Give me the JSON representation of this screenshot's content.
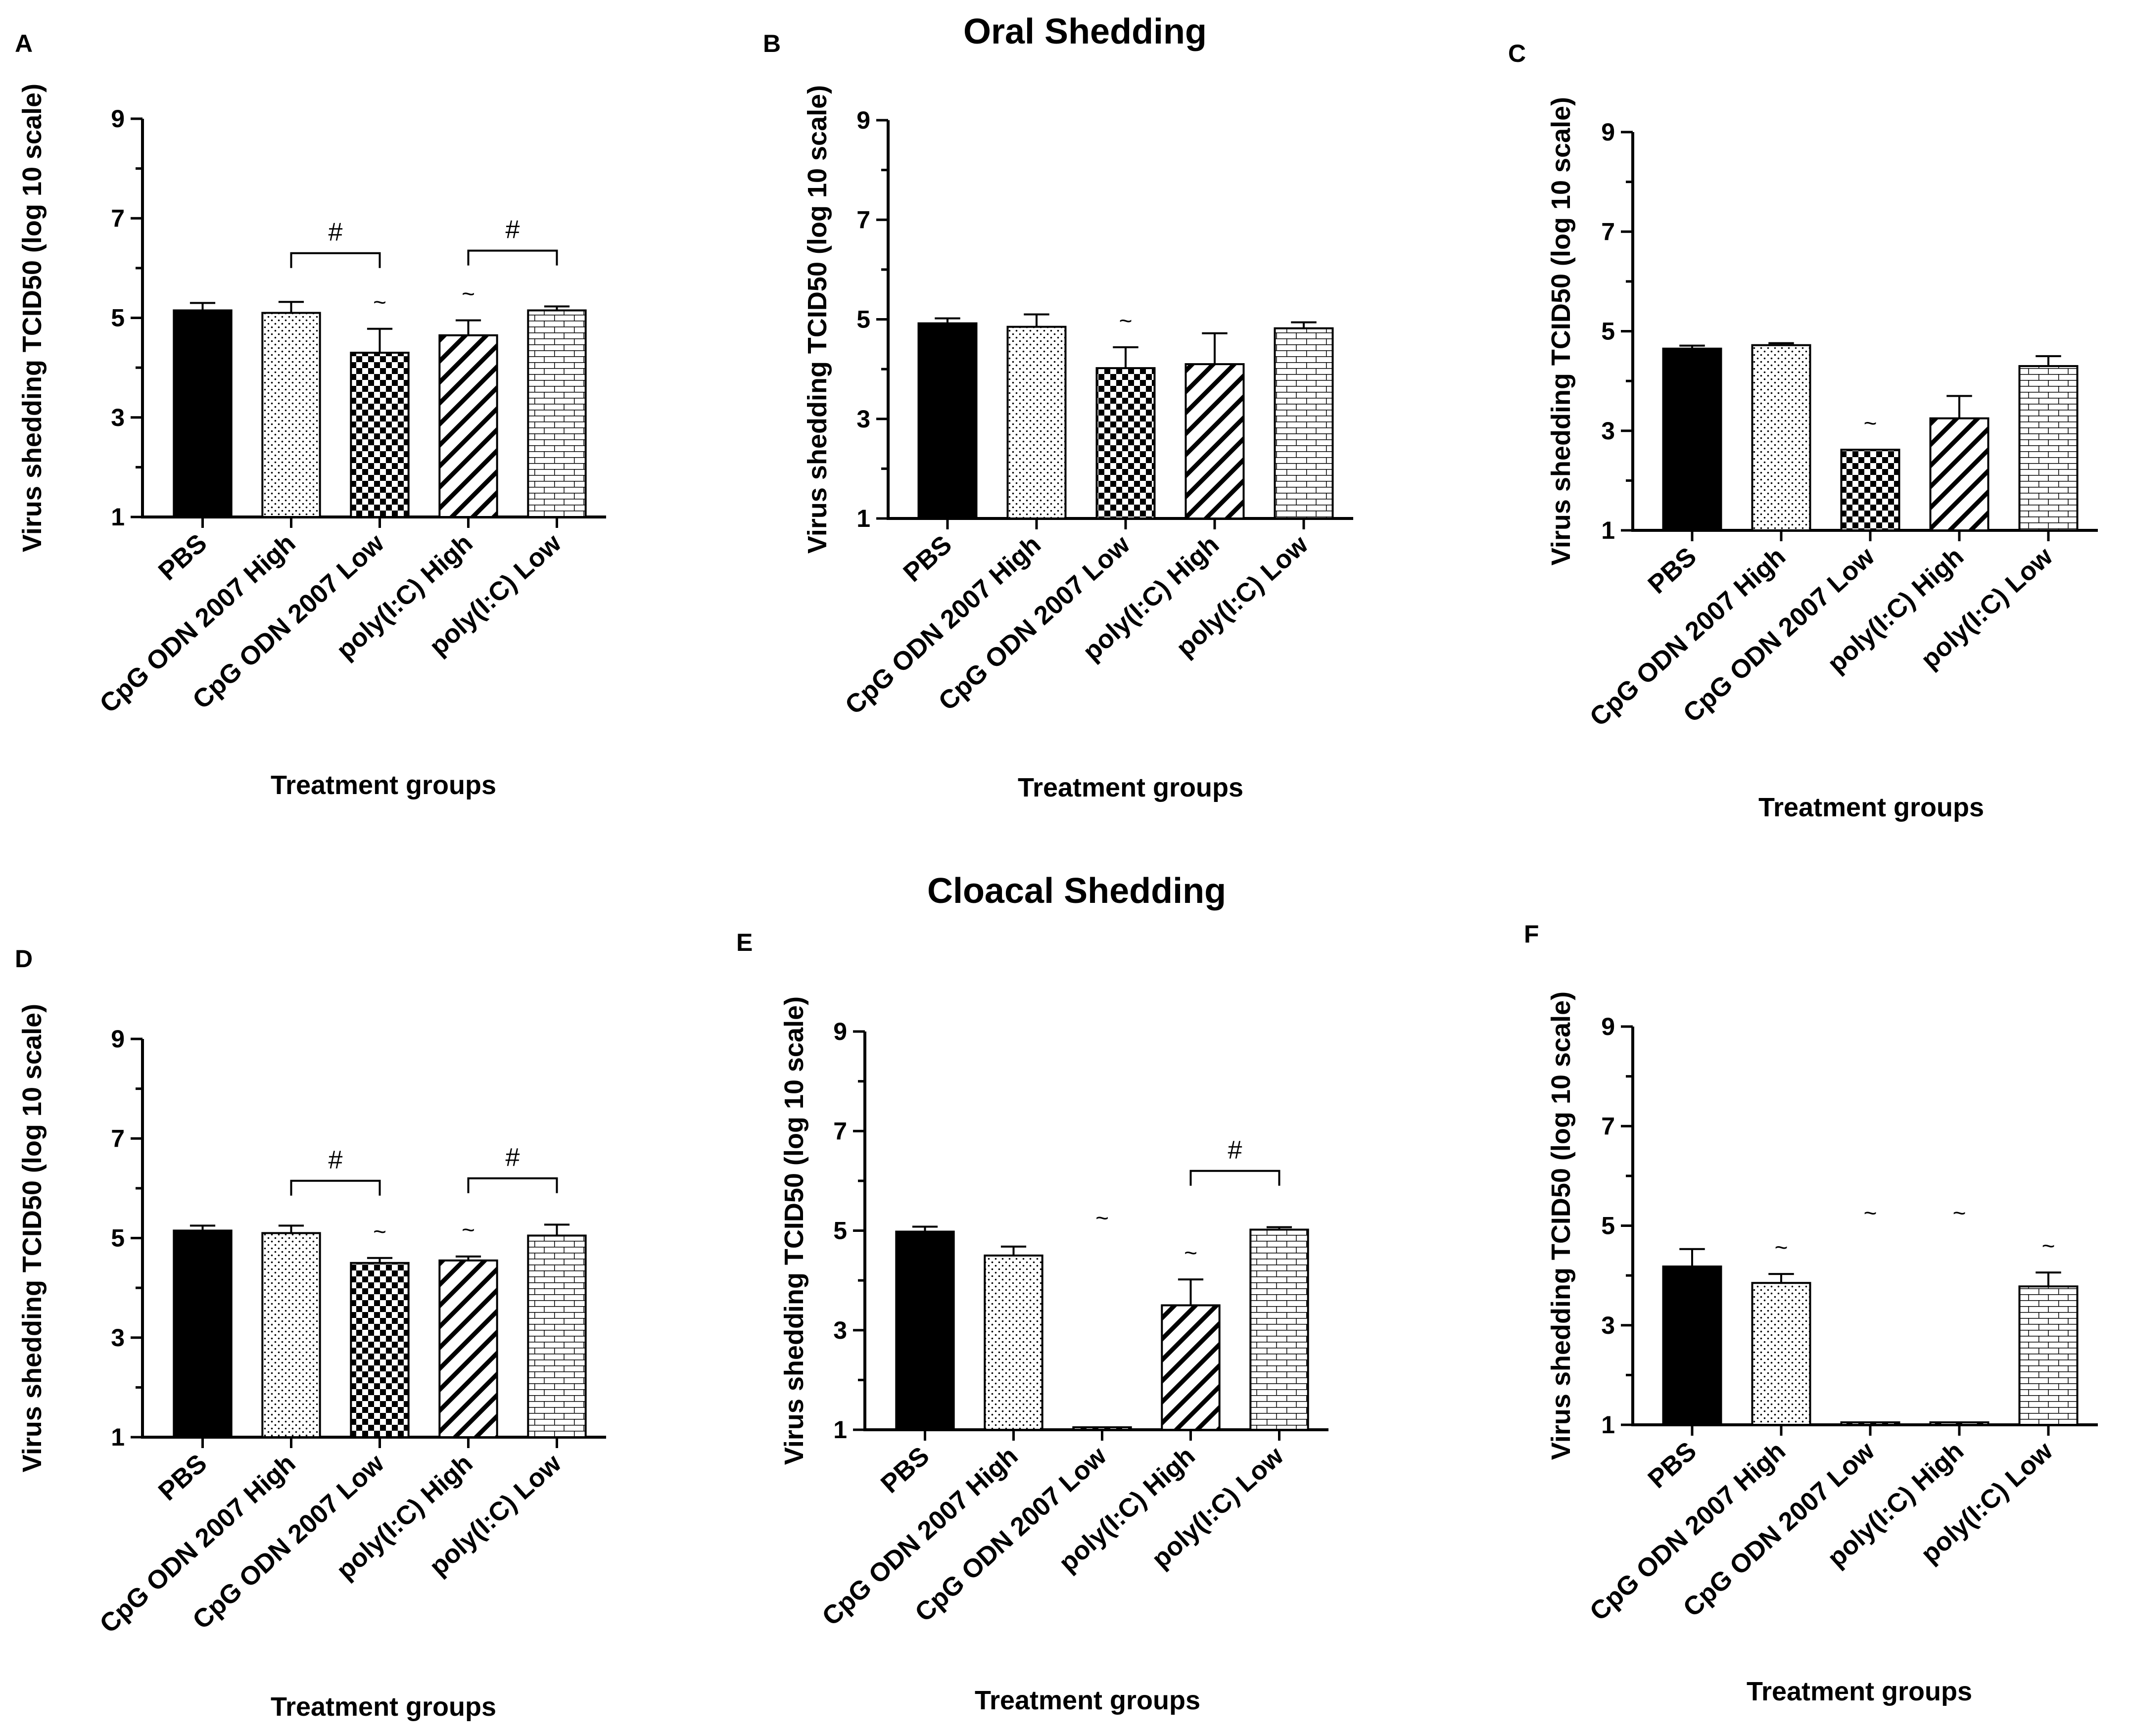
{
  "titles": {
    "oral": "Oral Shedding",
    "cloacal": "Cloacal Shedding"
  },
  "colors": {
    "ink": "#000000",
    "background": "#ffffff"
  },
  "chart_data": [
    {
      "panel": "A",
      "type": "bar",
      "categories": [
        "PBS",
        "CpG ODN 2007 High",
        "CpG ODN 2007 Low",
        "poly(I:C) High",
        "poly(I:C) Low"
      ],
      "values": [
        5.15,
        5.1,
        4.3,
        4.65,
        5.15
      ],
      "errors": [
        0.15,
        0.22,
        0.48,
        0.3,
        0.08
      ],
      "patterns": [
        "solid",
        "dots",
        "checker",
        "diagonal",
        "brick"
      ],
      "ylabel": "Virus shedding TCID50 (log 10 scale)",
      "xlabel": "Treatment groups",
      "ylim": [
        1,
        9
      ],
      "yticks": [
        1,
        3,
        5,
        7,
        9
      ],
      "annotations": [
        {
          "type": "tilde",
          "category": 2,
          "text": "~"
        },
        {
          "type": "tilde",
          "category": 3,
          "text": "~"
        }
      ],
      "brackets": [
        {
          "from": 1,
          "to": 2,
          "y": 6.3,
          "text": "#"
        },
        {
          "from": 3,
          "to": 4,
          "y": 6.35,
          "text": "#"
        }
      ]
    },
    {
      "panel": "B",
      "type": "bar",
      "categories": [
        "PBS",
        "CpG ODN 2007 High",
        "CpG ODN 2007 Low",
        "poly(I:C) High",
        "poly(I:C) Low"
      ],
      "values": [
        4.92,
        4.85,
        4.02,
        4.1,
        4.82
      ],
      "errors": [
        0.1,
        0.25,
        0.42,
        0.62,
        0.12
      ],
      "patterns": [
        "solid",
        "dots",
        "checker",
        "diagonal",
        "brick"
      ],
      "ylabel": "Virus shedding TCID50 (log 10 scale)",
      "xlabel": "Treatment groups",
      "ylim": [
        1,
        9
      ],
      "yticks": [
        1,
        3,
        5,
        7,
        9
      ],
      "annotations": [
        {
          "type": "tilde",
          "category": 2,
          "text": "~"
        }
      ],
      "brackets": []
    },
    {
      "panel": "C",
      "type": "bar",
      "categories": [
        "PBS",
        "CpG ODN 2007  High",
        "CpG ODN 2007 Low",
        "poly(I:C) High",
        "poly(I:C) Low"
      ],
      "values": [
        4.65,
        4.72,
        2.62,
        3.25,
        4.3
      ],
      "errors": [
        0.06,
        0.04,
        0.0,
        0.45,
        0.2
      ],
      "patterns": [
        "solid",
        "dots",
        "checker",
        "diagonal",
        "brick"
      ],
      "ylabel": "Virus shedding TCID50 (log 10 scale)",
      "xlabel": "Treatment groups",
      "ylim": [
        1,
        9
      ],
      "yticks": [
        1,
        3,
        5,
        7,
        9
      ],
      "annotations": [
        {
          "type": "tilde",
          "category": 2,
          "text": "~"
        }
      ],
      "brackets": []
    },
    {
      "panel": "D",
      "type": "bar",
      "categories": [
        "PBS",
        "CpG ODN 2007 High",
        "CpG ODN 2007 Low",
        "poly(I:C) High",
        "poly(I:C) Low"
      ],
      "values": [
        5.15,
        5.1,
        4.5,
        4.55,
        5.05
      ],
      "errors": [
        0.1,
        0.15,
        0.1,
        0.08,
        0.22
      ],
      "patterns": [
        "solid",
        "dots",
        "checker",
        "diagonal",
        "brick"
      ],
      "ylabel": "Virus shedding TCID50 (log 10 scale)",
      "xlabel": "Treatment groups",
      "ylim": [
        1,
        9
      ],
      "yticks": [
        1,
        3,
        5,
        7,
        9
      ],
      "annotations": [
        {
          "type": "tilde",
          "category": 2,
          "text": "~"
        },
        {
          "type": "tilde",
          "category": 3,
          "text": "~"
        }
      ],
      "brackets": [
        {
          "from": 1,
          "to": 2,
          "y": 6.15,
          "text": "#"
        },
        {
          "from": 3,
          "to": 4,
          "y": 6.2,
          "text": "#"
        }
      ]
    },
    {
      "panel": "E",
      "type": "bar",
      "categories": [
        "PBS",
        "CpG ODN 2007  High",
        "CpG ODN 2007 Low",
        "poly(I:C) High",
        "poly(I:C) Low"
      ],
      "values": [
        4.98,
        4.5,
        1.05,
        3.5,
        5.02
      ],
      "errors": [
        0.1,
        0.18,
        0.0,
        0.52,
        0.05
      ],
      "patterns": [
        "solid",
        "dots",
        "checker",
        "diagonal",
        "brick"
      ],
      "ylabel": "Virus shedding TCID50 (log 10 scale)",
      "xlabel": "Treatment groups",
      "ylim": [
        1,
        9
      ],
      "yticks": [
        1,
        3,
        5,
        7,
        9
      ],
      "annotations": [
        {
          "type": "tilde",
          "category": 2,
          "text": "~"
        },
        {
          "type": "tilde",
          "category": 3,
          "text": "~"
        }
      ],
      "brackets": [
        {
          "from": 3,
          "to": 4,
          "y": 6.2,
          "text": "#"
        }
      ]
    },
    {
      "panel": "F",
      "type": "bar",
      "categories": [
        "PBS",
        "CpG ODN 2007 High",
        "CpG ODN 2007 Low",
        "poly(I:C) High",
        "poly(I:C) Low"
      ],
      "values": [
        4.18,
        3.85,
        1.05,
        1.05,
        3.78
      ],
      "errors": [
        0.35,
        0.18,
        0.0,
        0.0,
        0.28
      ],
      "patterns": [
        "solid",
        "dots",
        "checker",
        "diagonal",
        "brick"
      ],
      "ylabel": "Virus shedding TCID50 (log 10 scale)",
      "xlabel": "Treatment groups",
      "ylim": [
        1,
        9
      ],
      "yticks": [
        1,
        3,
        5,
        7,
        9
      ],
      "annotations": [
        {
          "type": "tilde",
          "category": 1,
          "text": "~"
        },
        {
          "type": "tilde",
          "category": 2,
          "text": "~"
        },
        {
          "type": "tilde",
          "category": 3,
          "text": "~"
        },
        {
          "type": "tilde",
          "category": 4,
          "text": "~"
        }
      ],
      "brackets": []
    }
  ]
}
